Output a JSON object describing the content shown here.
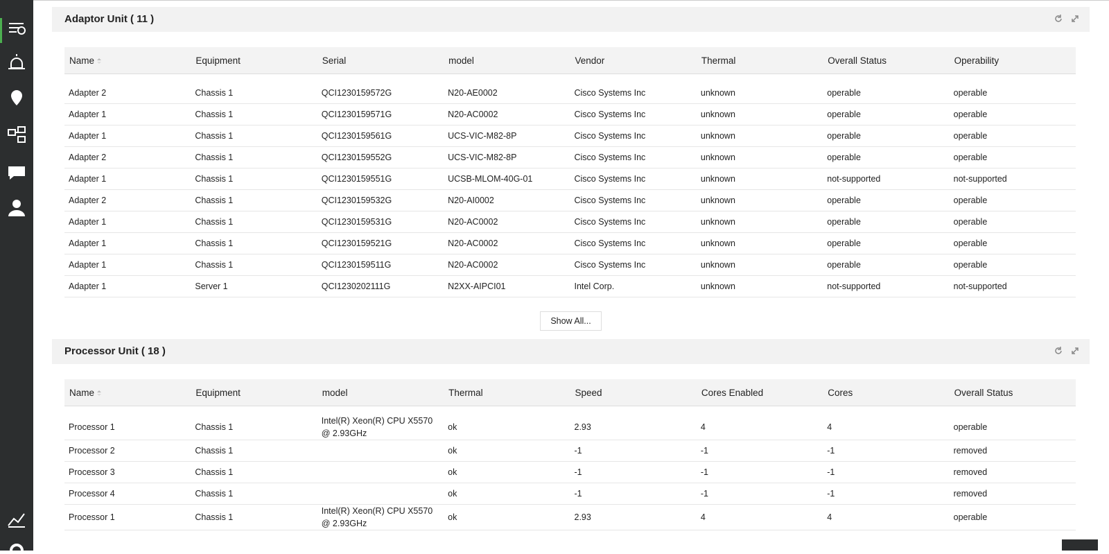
{
  "adaptor": {
    "title": "Adaptor Unit ( 11 )",
    "columns": [
      "Name",
      "Equipment",
      "Serial",
      "model",
      "Vendor",
      "Thermal",
      "Overall Status",
      "Operability"
    ],
    "rows": [
      [
        "Adapter 2",
        "Chassis 1",
        "QCI1230159572G",
        "N20-AE0002",
        "Cisco Systems Inc",
        "unknown",
        "operable",
        "operable"
      ],
      [
        "Adapter 1",
        "Chassis 1",
        "QCI1230159571G",
        "N20-AC0002",
        "Cisco Systems Inc",
        "unknown",
        "operable",
        "operable"
      ],
      [
        "Adapter 1",
        "Chassis 1",
        "QCI1230159561G",
        "UCS-VIC-M82-8P",
        "Cisco Systems Inc",
        "unknown",
        "operable",
        "operable"
      ],
      [
        "Adapter 2",
        "Chassis 1",
        "QCI1230159552G",
        "UCS-VIC-M82-8P",
        "Cisco Systems Inc",
        "unknown",
        "operable",
        "operable"
      ],
      [
        "Adapter 1",
        "Chassis 1",
        "QCI1230159551G",
        "UCSB-MLOM-40G-01",
        "Cisco Systems Inc",
        "unknown",
        "not-supported",
        "not-supported"
      ],
      [
        "Adapter 2",
        "Chassis 1",
        "QCI1230159532G",
        "N20-AI0002",
        "Cisco Systems Inc",
        "unknown",
        "operable",
        "operable"
      ],
      [
        "Adapter 1",
        "Chassis 1",
        "QCI1230159531G",
        "N20-AC0002",
        "Cisco Systems Inc",
        "unknown",
        "operable",
        "operable"
      ],
      [
        "Adapter 1",
        "Chassis 1",
        "QCI1230159521G",
        "N20-AC0002",
        "Cisco Systems Inc",
        "unknown",
        "operable",
        "operable"
      ],
      [
        "Adapter 1",
        "Chassis 1",
        "QCI1230159511G",
        "N20-AC0002",
        "Cisco Systems Inc",
        "unknown",
        "operable",
        "operable"
      ],
      [
        "Adapter 1",
        "Server 1",
        "QCI1230202111G",
        "N2XX-AIPCI01",
        "Intel Corp.",
        "unknown",
        "not-supported",
        "not-supported"
      ]
    ],
    "show_all": "Show All..."
  },
  "processor": {
    "title": "Processor Unit ( 18 )",
    "columns": [
      "Name",
      "Equipment",
      "model",
      "Thermal",
      "Speed",
      "Cores Enabled",
      "Cores",
      "Overall Status"
    ],
    "rows": [
      [
        "Processor 1",
        "Chassis 1",
        "Intel(R) Xeon(R) CPU X5570 @ 2.93GHz",
        "ok",
        "2.93",
        "4",
        "4",
        "operable"
      ],
      [
        "Processor 2",
        "Chassis 1",
        null,
        "ok",
        "-1",
        "-1",
        "-1",
        "removed"
      ],
      [
        "Processor 3",
        "Chassis 1",
        null,
        "ok",
        "-1",
        "-1",
        "-1",
        "removed"
      ],
      [
        "Processor 4",
        "Chassis 1",
        null,
        "ok",
        "-1",
        "-1",
        "-1",
        "removed"
      ],
      [
        "Processor 1",
        "Chassis 1",
        "Intel(R) Xeon(R) CPU X5570 @ 2.93GHz",
        "ok",
        "2.93",
        "4",
        "4",
        "operable"
      ]
    ]
  }
}
